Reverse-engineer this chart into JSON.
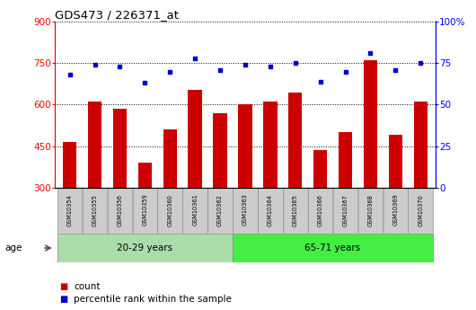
{
  "title": "GDS473 / 226371_at",
  "samples": [
    "GSM10354",
    "GSM10355",
    "GSM10356",
    "GSM10359",
    "GSM10360",
    "GSM10361",
    "GSM10362",
    "GSM10363",
    "GSM10364",
    "GSM10365",
    "GSM10366",
    "GSM10367",
    "GSM10368",
    "GSM10369",
    "GSM10370"
  ],
  "counts": [
    465,
    610,
    585,
    390,
    510,
    655,
    570,
    600,
    610,
    645,
    435,
    500,
    760,
    490,
    610
  ],
  "percentiles": [
    68,
    74,
    73,
    63,
    70,
    78,
    71,
    74,
    73,
    75,
    64,
    70,
    81,
    71,
    75
  ],
  "group1_label": "20-29 years",
  "group2_label": "65-71 years",
  "group1_count": 7,
  "group2_count": 8,
  "left_yticks": [
    300,
    450,
    600,
    750,
    900
  ],
  "right_yticks": [
    0,
    25,
    50,
    75,
    100
  ],
  "right_yticklabels": [
    "0",
    "25",
    "50",
    "75",
    "100%"
  ],
  "ylim_left": [
    300,
    900
  ],
  "ylim_right": [
    0,
    100
  ],
  "bar_color": "#cc0000",
  "dot_color": "#0000cc",
  "group1_bg": "#aaddaa",
  "group2_bg": "#44ee44",
  "legend_count": "count",
  "legend_pct": "percentile rank within the sample",
  "title_fontsize": 9.5,
  "tick_fontsize": 7.5,
  "figsize": [
    5.3,
    3.45
  ],
  "dpi": 100
}
